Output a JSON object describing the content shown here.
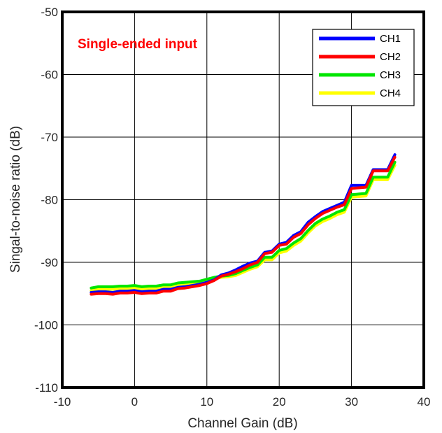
{
  "chart_data": {
    "type": "line",
    "title": "",
    "xlabel": "Channel Gain (dB)",
    "ylabel": "Singal-to-noise ratio (dB)",
    "xlim": [
      -10,
      40
    ],
    "ylim": [
      -110,
      -50
    ],
    "xticks": [
      -10,
      0,
      10,
      20,
      30,
      40
    ],
    "yticks": [
      -110,
      -100,
      -90,
      -80,
      -70,
      -60,
      -50
    ],
    "xtick_labels": [
      "-10",
      "0",
      "10",
      "20",
      "30",
      "40"
    ],
    "ytick_labels": [
      "-110",
      "-100",
      "-90",
      "-80",
      "-70",
      "-60",
      "-50"
    ],
    "grid": true,
    "legend_position": "top-right",
    "annotation": {
      "text": "Single-ended input",
      "color": "#ff0000"
    },
    "x": [
      -6,
      -5,
      -4,
      -3,
      -2,
      -1,
      0,
      1,
      2,
      3,
      4,
      5,
      6,
      7,
      8,
      9,
      10,
      11,
      12,
      13,
      14,
      15,
      16,
      17,
      18,
      19,
      20,
      21,
      22,
      23,
      24,
      25,
      26,
      27,
      28,
      29,
      30,
      31,
      32,
      33,
      34,
      35,
      36
    ],
    "series": [
      {
        "name": "CH1",
        "color": "#0000ff",
        "values": [
          -94.8,
          -94.7,
          -94.7,
          -94.8,
          -94.6,
          -94.6,
          -94.5,
          -94.7,
          -94.6,
          -94.6,
          -94.3,
          -94.3,
          -94.0,
          -93.9,
          -93.7,
          -93.5,
          -93.2,
          -92.8,
          -92.0,
          -91.7,
          -91.2,
          -90.6,
          -90.1,
          -89.8,
          -88.4,
          -88.2,
          -87.1,
          -86.8,
          -85.7,
          -85.1,
          -83.6,
          -82.7,
          -81.9,
          -81.4,
          -80.9,
          -80.4,
          -77.7,
          -77.7,
          -77.7,
          -75.2,
          -75.2,
          -75.2,
          -72.8
        ]
      },
      {
        "name": "CH2",
        "color": "#ff0000",
        "values": [
          -95.1,
          -95.0,
          -95.0,
          -95.1,
          -94.9,
          -94.9,
          -94.8,
          -95.0,
          -94.9,
          -94.9,
          -94.6,
          -94.6,
          -94.2,
          -94.1,
          -93.9,
          -93.7,
          -93.4,
          -92.9,
          -92.2,
          -91.9,
          -91.5,
          -91.0,
          -90.4,
          -90.0,
          -88.6,
          -88.4,
          -87.3,
          -87.1,
          -86.0,
          -85.4,
          -84.0,
          -83.0,
          -82.2,
          -81.7,
          -81.2,
          -80.8,
          -78.2,
          -78.1,
          -78.0,
          -75.4,
          -75.4,
          -75.4,
          -73.2
        ]
      },
      {
        "name": "CH3",
        "color": "#00e600",
        "values": [
          -94.1,
          -93.9,
          -93.9,
          -93.9,
          -93.8,
          -93.8,
          -93.7,
          -93.9,
          -93.8,
          -93.8,
          -93.6,
          -93.6,
          -93.3,
          -93.2,
          -93.1,
          -93.0,
          -92.7,
          -92.4,
          -92.2,
          -92.1,
          -91.8,
          -91.3,
          -90.8,
          -90.4,
          -89.2,
          -89.2,
          -88.1,
          -87.8,
          -86.9,
          -86.2,
          -84.9,
          -83.8,
          -83.1,
          -82.6,
          -82.0,
          -81.6,
          -79.2,
          -79.1,
          -79.0,
          -76.4,
          -76.4,
          -76.4,
          -74.0
        ]
      },
      {
        "name": "CH4",
        "color": "#ffff00",
        "values": [
          -94.5,
          -94.3,
          -94.3,
          -94.3,
          -94.2,
          -94.2,
          -94.1,
          -94.3,
          -94.2,
          -94.2,
          -94.0,
          -94.0,
          -93.6,
          -93.5,
          -93.4,
          -93.2,
          -92.9,
          -92.6,
          -92.4,
          -92.3,
          -92.1,
          -91.6,
          -91.1,
          -90.7,
          -89.6,
          -89.6,
          -88.5,
          -88.2,
          -87.3,
          -86.6,
          -85.3,
          -84.2,
          -83.5,
          -83.0,
          -82.4,
          -82.0,
          -79.6,
          -79.5,
          -79.4,
          -76.8,
          -76.8,
          -76.8,
          -74.5
        ]
      }
    ]
  }
}
